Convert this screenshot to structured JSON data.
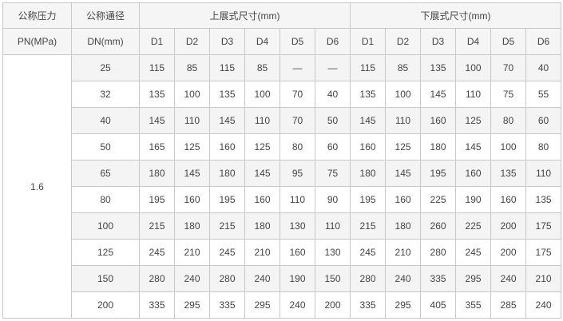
{
  "header": {
    "pn_label1": "公称压力",
    "pn_label2": "PN(MPa)",
    "dn_label1": "公称通径",
    "dn_label2": "DN(mm)",
    "upper_group": "上展式尺寸(mm)",
    "lower_group": "下展式尺寸(mm)",
    "sub_columns": [
      "D1",
      "D2",
      "D3",
      "D4",
      "D5",
      "D6"
    ]
  },
  "pn_value": "1.6",
  "rows": [
    {
      "dn": "25",
      "upper": [
        "115",
        "85",
        "115",
        "85",
        "—",
        "—"
      ],
      "lower": [
        "115",
        "85",
        "135",
        "100",
        "70",
        "40"
      ]
    },
    {
      "dn": "32",
      "upper": [
        "135",
        "100",
        "135",
        "100",
        "70",
        "40"
      ],
      "lower": [
        "135",
        "100",
        "145",
        "110",
        "75",
        "55"
      ]
    },
    {
      "dn": "40",
      "upper": [
        "145",
        "110",
        "145",
        "110",
        "70",
        "50"
      ],
      "lower": [
        "145",
        "110",
        "160",
        "125",
        "80",
        "60"
      ]
    },
    {
      "dn": "50",
      "upper": [
        "165",
        "125",
        "160",
        "125",
        "80",
        "60"
      ],
      "lower": [
        "160",
        "125",
        "180",
        "145",
        "100",
        "80"
      ]
    },
    {
      "dn": "65",
      "upper": [
        "180",
        "145",
        "180",
        "145",
        "95",
        "75"
      ],
      "lower": [
        "180",
        "145",
        "195",
        "160",
        "135",
        "110"
      ]
    },
    {
      "dn": "80",
      "upper": [
        "195",
        "160",
        "195",
        "160",
        "110",
        "90"
      ],
      "lower": [
        "195",
        "160",
        "225",
        "190",
        "160",
        "135"
      ]
    },
    {
      "dn": "100",
      "upper": [
        "215",
        "180",
        "215",
        "180",
        "130",
        "110"
      ],
      "lower": [
        "215",
        "180",
        "260",
        "225",
        "200",
        "175"
      ]
    },
    {
      "dn": "125",
      "upper": [
        "245",
        "210",
        "245",
        "210",
        "160",
        "130"
      ],
      "lower": [
        "245",
        "210",
        "280",
        "245",
        "200",
        "175"
      ]
    },
    {
      "dn": "150",
      "upper": [
        "280",
        "240",
        "280",
        "240",
        "190",
        "150"
      ],
      "lower": [
        "280",
        "240",
        "335",
        "295",
        "240",
        "210"
      ]
    },
    {
      "dn": "200",
      "upper": [
        "335",
        "295",
        "335",
        "295",
        "240",
        "200"
      ],
      "lower": [
        "335",
        "295",
        "405",
        "355",
        "285",
        "240"
      ]
    }
  ]
}
